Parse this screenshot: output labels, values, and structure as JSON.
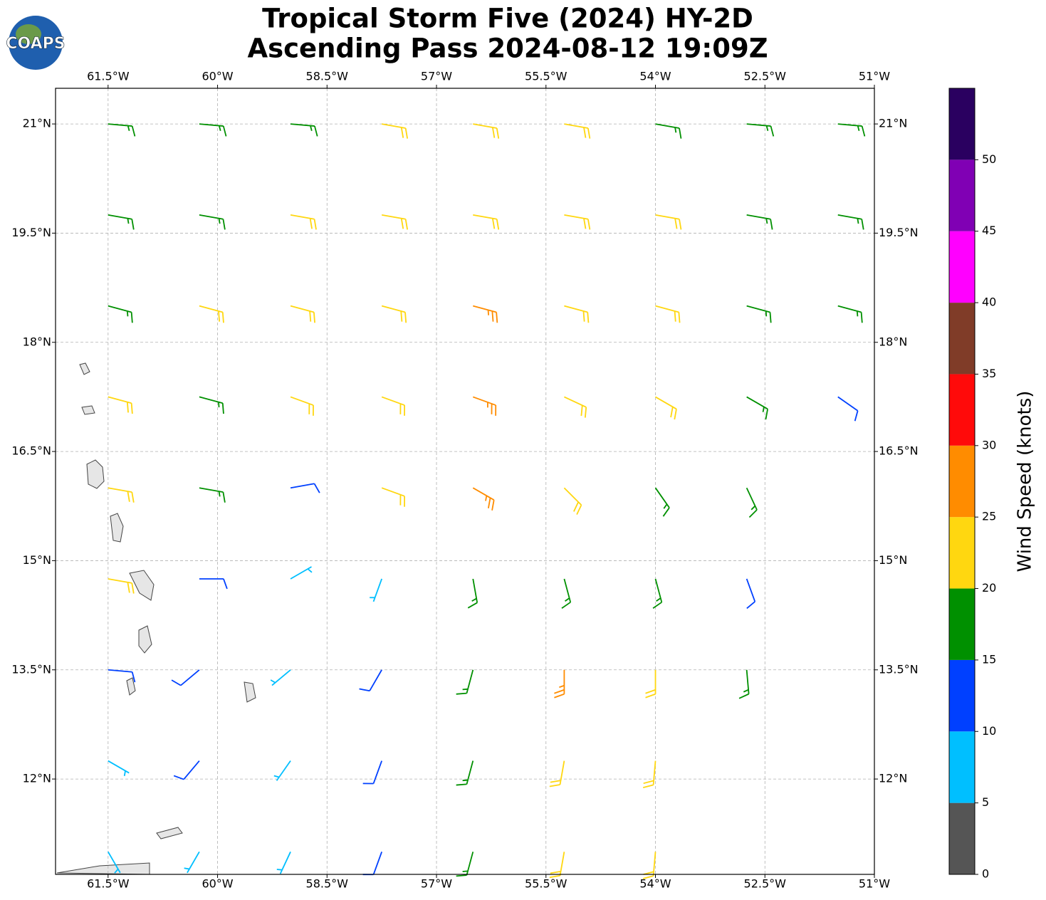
{
  "chart_data": {
    "type": "wind-barbs",
    "logo": "COAPS",
    "title": [
      "Tropical Storm Five (2024) HY-2D",
      "Ascending Pass 2024-08-12 19:09Z"
    ],
    "xlim": [
      -62.22,
      -51
    ],
    "ylim": [
      10.69,
      21.49
    ],
    "xticks": [
      {
        "value": -61.5,
        "label": "61.5°W"
      },
      {
        "value": -60,
        "label": "60°W"
      },
      {
        "value": -58.5,
        "label": "58.5°W"
      },
      {
        "value": -57,
        "label": "57°W"
      },
      {
        "value": -55.5,
        "label": "55.5°W"
      },
      {
        "value": -54,
        "label": "54°W"
      },
      {
        "value": -52.5,
        "label": "52.5°W"
      },
      {
        "value": -51,
        "label": "51°W"
      }
    ],
    "yticks": [
      {
        "value": 12,
        "label": "12°N"
      },
      {
        "value": 13.5,
        "label": "13.5°N"
      },
      {
        "value": 15,
        "label": "15°N"
      },
      {
        "value": 16.5,
        "label": "16.5°N"
      },
      {
        "value": 18,
        "label": "18°N"
      },
      {
        "value": 19.5,
        "label": "19.5°N"
      },
      {
        "value": 21,
        "label": "21°N"
      }
    ],
    "grid": true,
    "barbs": [
      [
        -61.5,
        21,
        16,
        95
      ],
      [
        -60.25,
        21,
        17,
        95
      ],
      [
        -59,
        21,
        18,
        95
      ],
      [
        -57.75,
        21,
        20,
        100
      ],
      [
        -56.5,
        21,
        22,
        100
      ],
      [
        -55.25,
        21,
        21,
        100
      ],
      [
        -54,
        21,
        19,
        100
      ],
      [
        -52.75,
        21,
        17,
        95
      ],
      [
        -51.5,
        21,
        16,
        95
      ],
      [
        -61.5,
        19.75,
        17,
        100
      ],
      [
        -60.25,
        19.75,
        19,
        100
      ],
      [
        -59,
        19.75,
        21,
        100
      ],
      [
        -57.75,
        19.75,
        22,
        100
      ],
      [
        -56.5,
        19.75,
        23,
        100
      ],
      [
        -55.25,
        19.75,
        22,
        100
      ],
      [
        -54,
        19.75,
        20,
        100
      ],
      [
        -52.75,
        19.75,
        18,
        100
      ],
      [
        -51.5,
        19.75,
        16,
        100
      ],
      [
        -61.5,
        18.5,
        17,
        105
      ],
      [
        -60.25,
        18.5,
        21,
        105
      ],
      [
        -59,
        18.5,
        22,
        105
      ],
      [
        -57.75,
        18.5,
        23,
        105
      ],
      [
        -56.5,
        18.5,
        26,
        105
      ],
      [
        -55.25,
        18.5,
        24,
        105
      ],
      [
        -54,
        18.5,
        21,
        105
      ],
      [
        -52.75,
        18.5,
        19,
        105
      ],
      [
        -51.5,
        18.5,
        17,
        105
      ],
      [
        -61.5,
        17.25,
        21,
        105
      ],
      [
        -60.25,
        17.25,
        18,
        105
      ],
      [
        -59,
        17.25,
        22,
        110
      ],
      [
        -57.75,
        17.25,
        24,
        110
      ],
      [
        -56.5,
        17.25,
        27,
        110
      ],
      [
        -55.25,
        17.25,
        24,
        115
      ],
      [
        -54,
        17.25,
        21,
        120
      ],
      [
        -52.75,
        17.25,
        18,
        120
      ],
      [
        -51.5,
        17.25,
        14,
        125
      ],
      [
        -61.5,
        16,
        22,
        100
      ],
      [
        -60.25,
        16,
        18,
        100
      ],
      [
        -59,
        16,
        12,
        80
      ],
      [
        -57.75,
        16,
        20,
        110
      ],
      [
        -56.5,
        16,
        27,
        120
      ],
      [
        -55.25,
        16,
        23,
        135
      ],
      [
        -54,
        16,
        19,
        145
      ],
      [
        -52.75,
        16,
        16,
        155
      ],
      [
        -61.5,
        14.75,
        21,
        100
      ],
      [
        -60.25,
        14.75,
        13,
        90
      ],
      [
        -59,
        14.75,
        8,
        60
      ],
      [
        -57.75,
        14.75,
        6,
        200
      ],
      [
        -56.5,
        14.75,
        17,
        170
      ],
      [
        -55.25,
        14.75,
        19,
        165
      ],
      [
        -54,
        14.75,
        18,
        165
      ],
      [
        -52.75,
        14.75,
        14,
        160
      ],
      [
        -61.5,
        13.5,
        12,
        95
      ],
      [
        -60.25,
        13.5,
        14,
        230
      ],
      [
        -59,
        13.5,
        9,
        230
      ],
      [
        -57.75,
        13.5,
        10,
        210
      ],
      [
        -56.5,
        13.5,
        16,
        195
      ],
      [
        -55.25,
        13.5,
        25,
        180
      ],
      [
        -54,
        13.5,
        21,
        180
      ],
      [
        -52.75,
        13.5,
        17,
        175
      ],
      [
        -61.5,
        12.25,
        8,
        120
      ],
      [
        -60.25,
        12.25,
        13,
        220
      ],
      [
        -59,
        12.25,
        8,
        215
      ],
      [
        -57.75,
        12.25,
        13,
        200
      ],
      [
        -56.5,
        12.25,
        17,
        195
      ],
      [
        -55.25,
        12.25,
        24,
        190
      ],
      [
        -54,
        12.25,
        21,
        185
      ],
      [
        -61.5,
        11,
        7,
        150
      ],
      [
        -60.25,
        11,
        9,
        210
      ],
      [
        -59,
        11,
        9,
        205
      ],
      [
        -57.75,
        11,
        13,
        200
      ],
      [
        -56.5,
        11,
        17,
        195
      ],
      [
        -55.25,
        11,
        22,
        190
      ],
      [
        -54,
        11,
        21,
        185
      ]
    ],
    "colorbar": {
      "label": "Wind Speed (knots)",
      "bounds": [
        0,
        5,
        10,
        15,
        20,
        25,
        30,
        35,
        40,
        45,
        50,
        55
      ],
      "colors": [
        "#555555",
        "#00bfff",
        "#0040ff",
        "#009000",
        "#ffd710",
        "#ff8c00",
        "#ff0a0a",
        "#803c28",
        "#ff00ff",
        "#8000b4",
        "#2a0060"
      ],
      "ticks": [
        0,
        5,
        10,
        15,
        20,
        25,
        30,
        35,
        40,
        45,
        50
      ]
    }
  }
}
